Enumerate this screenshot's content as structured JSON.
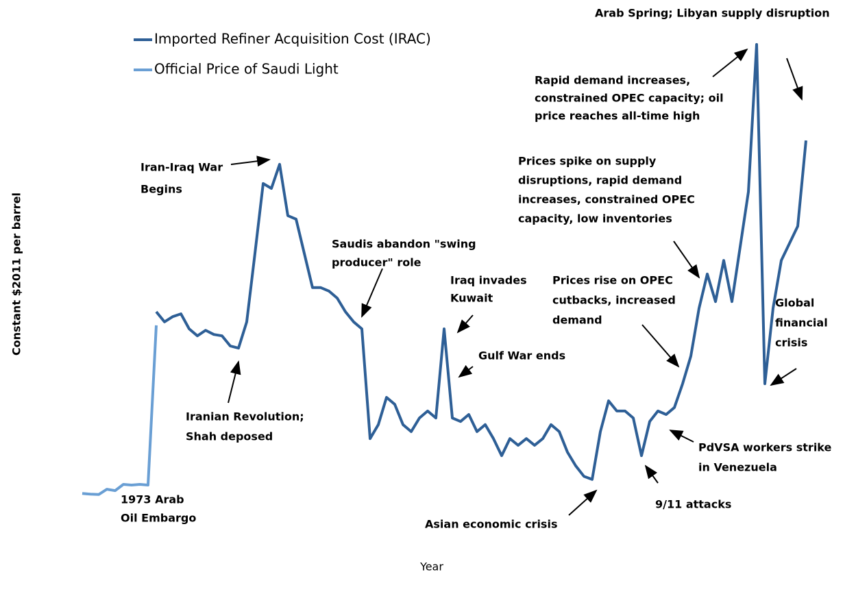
{
  "chart_data": {
    "type": "line",
    "y_label": "Constant $2011 per barrel",
    "x_label": "Year",
    "ylim": [
      0,
      150
    ],
    "categories": [
      null,
      null,
      null,
      null,
      null,
      null,
      null,
      null,
      null,
      null,
      null,
      null,
      null,
      null,
      null,
      null,
      null,
      null,
      null,
      null,
      null,
      null,
      null,
      null,
      null,
      null,
      null,
      null,
      null,
      null,
      null,
      null,
      null,
      null,
      null,
      null,
      null,
      null,
      null,
      null,
      null,
      null,
      null,
      null,
      null,
      null,
      null,
      null,
      null,
      null,
      null,
      null,
      null,
      null,
      null,
      null,
      null,
      null,
      null,
      null,
      null,
      null,
      null,
      null,
      null,
      null,
      null,
      null,
      null,
      null,
      null,
      null,
      null,
      null,
      null,
      null,
      null,
      null,
      null,
      null,
      null,
      null,
      null,
      null,
      null,
      null,
      null,
      null,
      null
    ],
    "series": [
      {
        "name": "Imported Refiner Acquisition Cost (IRAC)",
        "color": "#2e5f96",
        "values": [
          null,
          null,
          null,
          null,
          null,
          null,
          null,
          null,
          null,
          64.7,
          61.8,
          63.3,
          64.1,
          59.8,
          57.8,
          59.4,
          58.2,
          57.8,
          54.9,
          54.3,
          61.8,
          81.4,
          101.4,
          100,
          106.9,
          92.2,
          91.2,
          81.4,
          71.6,
          71.6,
          70.6,
          68.6,
          64.7,
          61.8,
          59.8,
          28.4,
          32.4,
          40.2,
          38.2,
          32.4,
          30.4,
          34.3,
          36.3,
          34.3,
          59.8,
          34.3,
          33.3,
          35.3,
          30.4,
          32.4,
          28.4,
          23.5,
          28.4,
          26.5,
          28.4,
          26.5,
          28.4,
          32.4,
          30.4,
          24.5,
          20.6,
          17.6,
          16.7,
          30.4,
          39.2,
          36.3,
          36.3,
          34.3,
          23.5,
          33.3,
          36.3,
          35.3,
          37.3,
          44.1,
          52,
          65.7,
          75.5,
          67.6,
          79.4,
          67.6,
          83.3,
          99,
          141.2,
          44.1,
          65.7,
          79.4,
          84.3,
          89.2,
          113.7
        ]
      },
      {
        "name": "Official Price of Saudi Light",
        "color": "#6a9fd4",
        "values": [
          12.7,
          12.5,
          12.4,
          13.9,
          13.5,
          15.3,
          15.1,
          15.3,
          15.1,
          60.8,
          null,
          null,
          null,
          null,
          null,
          null,
          null,
          null,
          null,
          null,
          null,
          null,
          null,
          null,
          null,
          null,
          null,
          null,
          null,
          null,
          null,
          null,
          null,
          null,
          null,
          null,
          null,
          null,
          null,
          null,
          null,
          null,
          null,
          null,
          null,
          null,
          null,
          null,
          null,
          null,
          null,
          null,
          null,
          null,
          null,
          null,
          null,
          null,
          null,
          null,
          null,
          null,
          null,
          null,
          null,
          null,
          null,
          null,
          null,
          null,
          null,
          null,
          null,
          null,
          null,
          null,
          null,
          null,
          null,
          null,
          null,
          null,
          null,
          null,
          null,
          null,
          null,
          null,
          null
        ]
      }
    ],
    "annotations": [
      [
        "Arab Spring; Libyan supply disruption"
      ],
      [
        "Rapid demand increases,",
        "constrained OPEC capacity; oil",
        "price reaches all-time high"
      ],
      [
        "Iran-Iraq War",
        "Begins"
      ],
      [
        "Prices spike on supply",
        "disruptions, rapid demand",
        "increases, constrained OPEC",
        "capacity, low inventories"
      ],
      [
        "Saudis abandon \"swing",
        "producer\" role"
      ],
      [
        "Iraq invades",
        "Kuwait"
      ],
      [
        "Prices rise on OPEC",
        "cutbacks, increased",
        "demand"
      ],
      [
        "Global",
        "financial",
        "crisis"
      ],
      [
        "Gulf War ends"
      ],
      [
        "Iranian Revolution;",
        "Shah deposed"
      ],
      [
        "PdVSA workers strike",
        "in Venezuela"
      ],
      [
        "1973 Arab",
        "Oil Embargo"
      ],
      [
        "9/11 attacks"
      ],
      [
        "Asian economic crisis"
      ]
    ]
  }
}
